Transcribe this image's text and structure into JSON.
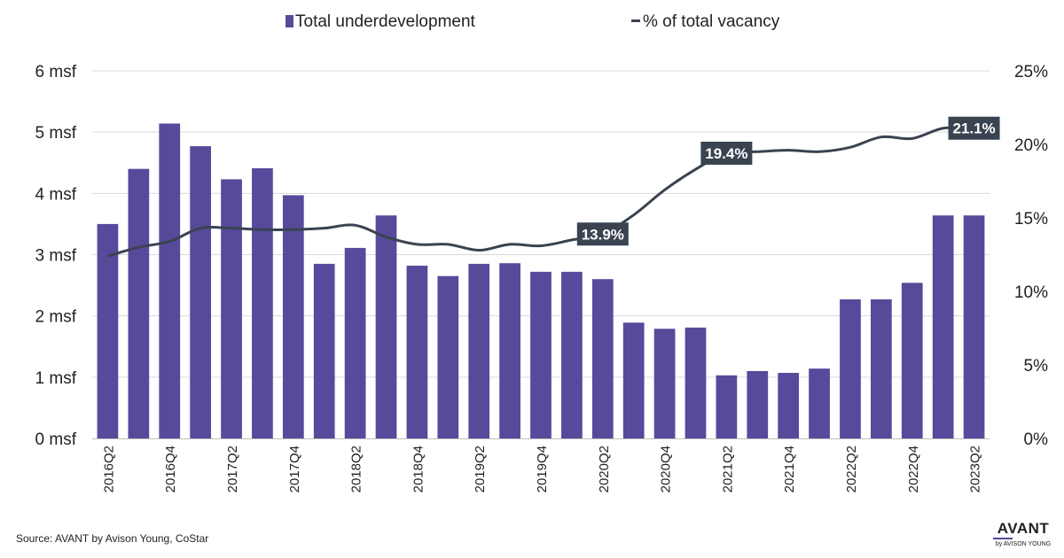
{
  "chart_data": {
    "type": "bar",
    "categories": [
      "2016Q2",
      "2016Q3",
      "2016Q4",
      "2017Q1",
      "2017Q2",
      "2017Q3",
      "2017Q4",
      "2018Q1",
      "2018Q2",
      "2018Q3",
      "2018Q4",
      "2019Q1",
      "2019Q2",
      "2019Q3",
      "2019Q4",
      "2020Q1",
      "2020Q2",
      "2020Q3",
      "2020Q4",
      "2021Q1",
      "2021Q2",
      "2021Q3",
      "2021Q4",
      "2022Q1",
      "2022Q2",
      "2022Q3",
      "2022Q4",
      "2023Q1",
      "2023Q2"
    ],
    "x_tick_labels": [
      "2016Q2",
      "2016Q4",
      "2017Q2",
      "2017Q4",
      "2018Q2",
      "2018Q4",
      "2019Q2",
      "2019Q4",
      "2020Q2",
      "2020Q4",
      "2021Q2",
      "2021Q4",
      "2022Q2",
      "2022Q4",
      "2023Q2"
    ],
    "series": [
      {
        "name": "Total underdevelopment",
        "type": "bar",
        "axis": "left",
        "color": "#574a9b",
        "values": [
          3.5,
          4.4,
          5.14,
          4.77,
          4.23,
          4.41,
          3.97,
          2.85,
          3.11,
          3.64,
          2.82,
          2.65,
          2.85,
          2.86,
          2.72,
          2.72,
          2.6,
          1.89,
          1.79,
          1.81,
          1.03,
          1.1,
          1.07,
          1.14,
          2.27,
          2.27,
          2.54,
          3.64,
          3.64
        ]
      },
      {
        "name": "% of total vacancy",
        "type": "line",
        "axis": "right",
        "color": "#3a4350",
        "values": [
          12.4,
          13.0,
          13.4,
          14.3,
          14.3,
          14.2,
          14.2,
          14.3,
          14.5,
          13.7,
          13.2,
          13.2,
          12.8,
          13.2,
          13.1,
          13.5,
          13.9,
          15.2,
          16.9,
          18.3,
          19.4,
          19.5,
          19.6,
          19.5,
          19.8,
          20.5,
          20.4,
          21.1,
          21.1
        ],
        "callouts": [
          {
            "category": "2020Q2",
            "label": "13.9%"
          },
          {
            "category": "2021Q2",
            "label": "19.4%"
          },
          {
            "category": "2023Q2",
            "label": "21.1%"
          }
        ]
      }
    ],
    "y_left": {
      "min": 0,
      "max": 6,
      "ticks": [
        0,
        1,
        2,
        3,
        4,
        5,
        6
      ],
      "tick_labels": [
        "0 msf",
        "1 msf",
        "2 msf",
        "3 msf",
        "4 msf",
        "5 msf",
        "6 msf"
      ]
    },
    "y_right": {
      "min": 0,
      "max": 25,
      "ticks": [
        0,
        5,
        10,
        15,
        20,
        25
      ],
      "tick_labels": [
        "0%",
        "5%",
        "10%",
        "15%",
        "20%",
        "25%"
      ]
    },
    "grid": true,
    "legend": "top-center"
  },
  "legend": {
    "bar_label": "Total underdevelopment",
    "line_label": "% of total vacancy"
  },
  "source": "Source: AVANT by Avison Young, CoStar",
  "logo": {
    "main": "AVANT",
    "sub": "by AVISON YOUNG",
    "accent_color": "#574a9b"
  }
}
